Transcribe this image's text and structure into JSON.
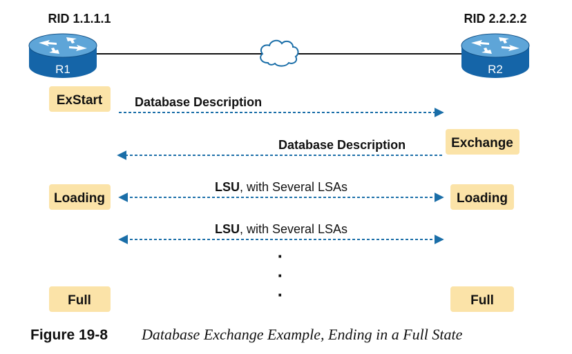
{
  "colors": {
    "router_body": "#1565a8",
    "router_top": "#5ea5d8",
    "state_box": "#fbe3a8",
    "arrow": "#1a6ea8",
    "link_line": "#111111"
  },
  "routers": {
    "r1": {
      "rid": "RID 1.1.1.1",
      "name": "R1",
      "icon": "router-icon"
    },
    "r2": {
      "rid": "RID 2.2.2.2",
      "name": "R2",
      "icon": "router-icon"
    }
  },
  "cloud_icon": "cloud-icon",
  "states": {
    "r1_exstart": "ExStart",
    "r2_exchange": "Exchange",
    "r1_loading": "Loading",
    "r2_loading": "Loading",
    "r1_full": "Full",
    "r2_full": "Full"
  },
  "messages": {
    "m1": {
      "bold": "Database Description",
      "rest": ""
    },
    "m2": {
      "bold": "Database Description",
      "rest": ""
    },
    "m3": {
      "bold": "LSU",
      "rest": ", with Several LSAs"
    },
    "m4": {
      "bold": "LSU",
      "rest": ", with Several LSAs"
    }
  },
  "continuation": [
    "·",
    "·",
    "·"
  ],
  "caption": {
    "number": "Figure 19-8",
    "title": "Database Exchange Example, Ending in a Full State"
  }
}
